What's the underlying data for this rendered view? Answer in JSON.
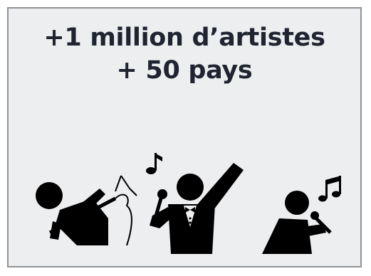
{
  "headline": {
    "line1": "+1 million d’artistes",
    "line2": "+ 50 pays"
  },
  "icons": [
    "guitarist-icon",
    "singer-tuxedo-icon",
    "singer-microphone-icon"
  ],
  "colors": {
    "background": "#edeef0",
    "border": "#8f9296",
    "text": "#1f2430",
    "icon": "#000000"
  }
}
